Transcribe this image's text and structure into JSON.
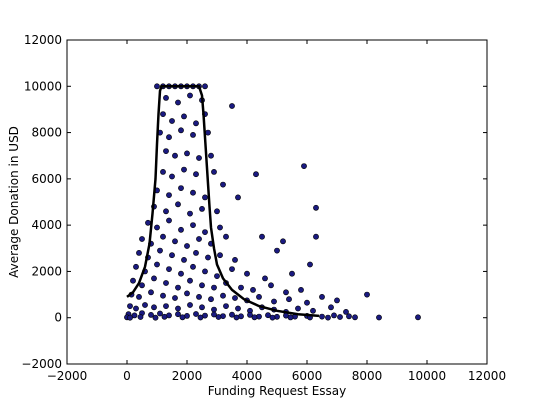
{
  "chart_data": {
    "type": "scatter",
    "title": "",
    "xlabel": "Funding Request Essay",
    "ylabel": "Average Donation in USD",
    "xlim": [
      -2000,
      12000
    ],
    "ylim": [
      -2000,
      12000
    ],
    "x_ticks": [
      -2000,
      0,
      2000,
      4000,
      6000,
      8000,
      10000,
      12000
    ],
    "y_ticks": [
      -2000,
      0,
      2000,
      4000,
      6000,
      8000,
      10000,
      12000
    ],
    "grid": false,
    "legend": "none",
    "point_color": "#1a1a80",
    "point_edge_color": "#000000",
    "line_color": "#000000",
    "series": [
      {
        "kind": "scatter",
        "points": [
          [
            1000,
            10000
          ],
          [
            1200,
            10000
          ],
          [
            1400,
            10000
          ],
          [
            1600,
            10000
          ],
          [
            1800,
            10000
          ],
          [
            2000,
            10000
          ],
          [
            2200,
            10000
          ],
          [
            2400,
            10000
          ],
          [
            2600,
            10000
          ],
          [
            1300,
            9500
          ],
          [
            1700,
            9300
          ],
          [
            2100,
            9600
          ],
          [
            2500,
            9400
          ],
          [
            3500,
            9150
          ],
          [
            1200,
            8800
          ],
          [
            1500,
            8500
          ],
          [
            1900,
            8700
          ],
          [
            2300,
            8400
          ],
          [
            2600,
            8800
          ],
          [
            1100,
            8000
          ],
          [
            1400,
            7800
          ],
          [
            1800,
            8100
          ],
          [
            2200,
            7900
          ],
          [
            2700,
            8000
          ],
          [
            1300,
            7200
          ],
          [
            1600,
            7000
          ],
          [
            2000,
            7100
          ],
          [
            2400,
            6900
          ],
          [
            2800,
            7000
          ],
          [
            1200,
            6300
          ],
          [
            1500,
            6100
          ],
          [
            1900,
            6400
          ],
          [
            2300,
            6200
          ],
          [
            2900,
            6300
          ],
          [
            4300,
            6200
          ],
          [
            5900,
            6550
          ],
          [
            1000,
            5500
          ],
          [
            1400,
            5300
          ],
          [
            1800,
            5600
          ],
          [
            2200,
            5400
          ],
          [
            2600,
            5200
          ],
          [
            3200,
            5750
          ],
          [
            3700,
            5200
          ],
          [
            900,
            4800
          ],
          [
            1300,
            4600
          ],
          [
            1700,
            4900
          ],
          [
            2100,
            4500
          ],
          [
            2500,
            4700
          ],
          [
            3000,
            4600
          ],
          [
            6300,
            4750
          ],
          [
            700,
            4100
          ],
          [
            1000,
            3900
          ],
          [
            1400,
            4200
          ],
          [
            1800,
            3800
          ],
          [
            2200,
            4000
          ],
          [
            2600,
            3700
          ],
          [
            3100,
            3900
          ],
          [
            500,
            3400
          ],
          [
            800,
            3200
          ],
          [
            1200,
            3500
          ],
          [
            1600,
            3300
          ],
          [
            2000,
            3100
          ],
          [
            2400,
            3400
          ],
          [
            2800,
            3200
          ],
          [
            3300,
            3500
          ],
          [
            4500,
            3500
          ],
          [
            5200,
            3300
          ],
          [
            6300,
            3500
          ],
          [
            400,
            2800
          ],
          [
            700,
            2600
          ],
          [
            1100,
            2900
          ],
          [
            1500,
            2700
          ],
          [
            1900,
            2500
          ],
          [
            2300,
            2800
          ],
          [
            2700,
            2600
          ],
          [
            3100,
            2700
          ],
          [
            3600,
            2500
          ],
          [
            5000,
            2900
          ],
          [
            6100,
            2300
          ],
          [
            300,
            2200
          ],
          [
            600,
            2000
          ],
          [
            1000,
            2300
          ],
          [
            1400,
            2100
          ],
          [
            1800,
            1900
          ],
          [
            2200,
            2200
          ],
          [
            2600,
            2000
          ],
          [
            3000,
            1800
          ],
          [
            3500,
            2100
          ],
          [
            4000,
            1900
          ],
          [
            4600,
            1700
          ],
          [
            5500,
            1900
          ],
          [
            200,
            1600
          ],
          [
            500,
            1400
          ],
          [
            900,
            1700
          ],
          [
            1300,
            1500
          ],
          [
            1700,
            1300
          ],
          [
            2100,
            1600
          ],
          [
            2500,
            1400
          ],
          [
            2900,
            1300
          ],
          [
            3300,
            1500
          ],
          [
            3800,
            1300
          ],
          [
            4200,
            1200
          ],
          [
            4800,
            1400
          ],
          [
            5300,
            1100
          ],
          [
            5800,
            1200
          ],
          [
            150,
            1000
          ],
          [
            400,
            900
          ],
          [
            800,
            1100
          ],
          [
            1200,
            950
          ],
          [
            1600,
            850
          ],
          [
            2000,
            1050
          ],
          [
            2400,
            900
          ],
          [
            2800,
            800
          ],
          [
            3200,
            950
          ],
          [
            3600,
            850
          ],
          [
            4000,
            750
          ],
          [
            4400,
            900
          ],
          [
            4900,
            700
          ],
          [
            5400,
            800
          ],
          [
            6000,
            650
          ],
          [
            6500,
            900
          ],
          [
            7000,
            750
          ],
          [
            8000,
            1000
          ],
          [
            100,
            500
          ],
          [
            300,
            400
          ],
          [
            600,
            550
          ],
          [
            900,
            450
          ],
          [
            1300,
            500
          ],
          [
            1700,
            400
          ],
          [
            2100,
            550
          ],
          [
            2500,
            450
          ],
          [
            2900,
            350
          ],
          [
            3300,
            500
          ],
          [
            3700,
            400
          ],
          [
            4100,
            300
          ],
          [
            4500,
            450
          ],
          [
            4900,
            350
          ],
          [
            5300,
            250
          ],
          [
            5700,
            400
          ],
          [
            6200,
            300
          ],
          [
            6800,
            450
          ],
          [
            7300,
            250
          ],
          [
            50,
            150
          ],
          [
            250,
            100
          ],
          [
            500,
            200
          ],
          [
            800,
            120
          ],
          [
            1100,
            180
          ],
          [
            1400,
            100
          ],
          [
            1700,
            150
          ],
          [
            2000,
            80
          ],
          [
            2300,
            160
          ],
          [
            2600,
            90
          ],
          [
            2900,
            140
          ],
          [
            3200,
            70
          ],
          [
            3500,
            130
          ],
          [
            3800,
            60
          ],
          [
            4100,
            120
          ],
          [
            4400,
            50
          ],
          [
            4700,
            110
          ],
          [
            5000,
            40
          ],
          [
            5300,
            90
          ],
          [
            5600,
            50
          ],
          [
            6000,
            80
          ],
          [
            6500,
            50
          ],
          [
            6900,
            100
          ],
          [
            7100,
            30
          ],
          [
            7400,
            60
          ],
          [
            7600,
            20
          ],
          [
            8400,
            10
          ],
          [
            9700,
            20
          ],
          [
            0,
            20
          ],
          [
            100,
            0
          ],
          [
            450,
            30
          ],
          [
            950,
            0
          ],
          [
            1250,
            40
          ],
          [
            1850,
            20
          ],
          [
            2450,
            10
          ],
          [
            3050,
            30
          ],
          [
            3650,
            10
          ],
          [
            4250,
            20
          ],
          [
            4850,
            5
          ],
          [
            5450,
            15
          ],
          [
            6100,
            10
          ],
          [
            6700,
            5
          ]
        ]
      },
      {
        "kind": "line",
        "name": "",
        "points": [
          [
            0,
            900
          ],
          [
            200,
            1100
          ],
          [
            400,
            1500
          ],
          [
            600,
            2200
          ],
          [
            750,
            3200
          ],
          [
            850,
            4500
          ],
          [
            950,
            6000
          ],
          [
            1000,
            7500
          ],
          [
            1050,
            8800
          ],
          [
            1100,
            9800
          ],
          [
            1150,
            10000
          ],
          [
            2400,
            10000
          ],
          [
            2500,
            9600
          ],
          [
            2550,
            8800
          ],
          [
            2600,
            7800
          ],
          [
            2650,
            6800
          ],
          [
            2700,
            5800
          ],
          [
            2750,
            4800
          ],
          [
            2800,
            3900
          ],
          [
            2900,
            3000
          ],
          [
            3000,
            2300
          ],
          [
            3200,
            1700
          ],
          [
            3500,
            1200
          ],
          [
            3900,
            800
          ],
          [
            4400,
            500
          ],
          [
            5000,
            300
          ],
          [
            5700,
            150
          ],
          [
            6400,
            80
          ]
        ]
      }
    ]
  }
}
